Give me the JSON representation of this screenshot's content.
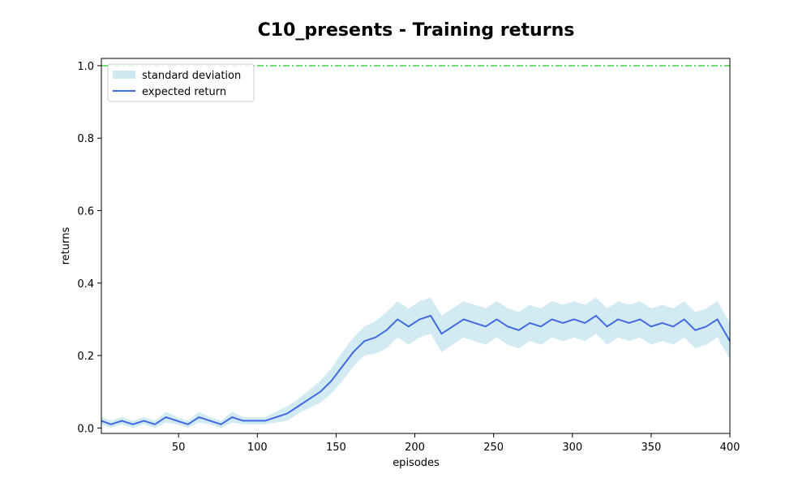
{
  "chart_data": {
    "type": "line",
    "title": "C10_presents - Training returns",
    "xlabel": "episodes",
    "ylabel": "returns",
    "xlim": [
      1,
      400
    ],
    "ylim": [
      -0.015,
      1.02
    ],
    "xticks": [
      50,
      100,
      150,
      200,
      250,
      300,
      350,
      400
    ],
    "xtick_labels": [
      "50",
      "100",
      "150",
      "200",
      "250",
      "300",
      "350",
      "400"
    ],
    "yticks": [
      0.0,
      0.2,
      0.4,
      0.6,
      0.8,
      1.0
    ],
    "ytick_labels": [
      "0.0",
      "0.2",
      "0.4",
      "0.6",
      "0.8",
      "1.0"
    ],
    "grid": false,
    "legend_position": "top-left",
    "legend": [
      {
        "label": "standard deviation",
        "kind": "band",
        "color": "#add8e6"
      },
      {
        "label": "expected return",
        "kind": "line",
        "color": "#4169e1"
      }
    ],
    "reference_line": {
      "y": 1.0,
      "color": "#32cd32",
      "style": "dash-dot"
    },
    "series": [
      {
        "name": "expected return",
        "color": "#4169e1",
        "std_color": "#add8e6",
        "x": [
          1,
          7,
          14,
          21,
          28,
          35,
          42,
          49,
          56,
          63,
          70,
          77,
          84,
          91,
          98,
          105,
          112,
          119,
          126,
          133,
          140,
          147,
          154,
          161,
          168,
          175,
          182,
          189,
          196,
          203,
          210,
          217,
          224,
          231,
          238,
          245,
          252,
          259,
          266,
          273,
          280,
          287,
          294,
          301,
          308,
          315,
          322,
          329,
          336,
          343,
          350,
          357,
          364,
          371,
          378,
          385,
          392,
          400
        ],
        "mean": [
          0.02,
          0.01,
          0.02,
          0.01,
          0.02,
          0.01,
          0.03,
          0.02,
          0.01,
          0.03,
          0.02,
          0.01,
          0.03,
          0.02,
          0.02,
          0.02,
          0.03,
          0.04,
          0.06,
          0.08,
          0.1,
          0.13,
          0.17,
          0.21,
          0.24,
          0.25,
          0.27,
          0.3,
          0.28,
          0.3,
          0.31,
          0.26,
          0.28,
          0.3,
          0.29,
          0.28,
          0.3,
          0.28,
          0.27,
          0.29,
          0.28,
          0.3,
          0.29,
          0.3,
          0.29,
          0.31,
          0.28,
          0.3,
          0.29,
          0.3,
          0.28,
          0.29,
          0.28,
          0.3,
          0.27,
          0.28,
          0.3,
          0.24
        ],
        "std": [
          0.01,
          0.01,
          0.01,
          0.01,
          0.01,
          0.01,
          0.015,
          0.01,
          0.01,
          0.015,
          0.01,
          0.01,
          0.015,
          0.01,
          0.01,
          0.01,
          0.015,
          0.02,
          0.02,
          0.025,
          0.03,
          0.035,
          0.04,
          0.04,
          0.04,
          0.045,
          0.05,
          0.05,
          0.05,
          0.05,
          0.05,
          0.05,
          0.05,
          0.05,
          0.05,
          0.05,
          0.05,
          0.05,
          0.05,
          0.05,
          0.05,
          0.05,
          0.05,
          0.05,
          0.05,
          0.05,
          0.05,
          0.05,
          0.05,
          0.05,
          0.05,
          0.05,
          0.05,
          0.05,
          0.05,
          0.05,
          0.05,
          0.05
        ]
      }
    ]
  }
}
